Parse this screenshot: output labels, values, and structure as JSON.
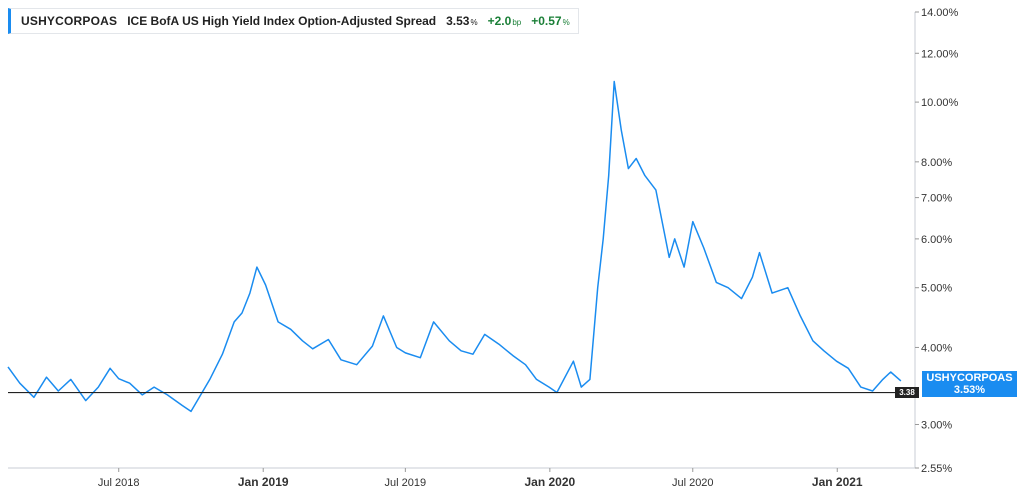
{
  "legend": {
    "symbol": "USHYCORPOAS",
    "name": "ICE BofA US High Yield Index Option-Adjusted Spread",
    "value": "3.53",
    "value_unit": "%",
    "change_bp": "+2.0",
    "change_bp_unit": "bp",
    "change_pct": "+0.57",
    "change_pct_unit": "%"
  },
  "last_label": {
    "symbol": "USHYCORPOAS",
    "value": "3.53%"
  },
  "reference": {
    "label": "3.38",
    "value": 3.38
  },
  "colors": {
    "line": "#1a8cf0",
    "reference": "#222222",
    "positive": "#1a7f37"
  },
  "chart_data": {
    "type": "line",
    "scale": "log",
    "ylim": [
      2.55,
      14.0
    ],
    "y_ticks": [
      14.0,
      12.0,
      10.0,
      8.0,
      7.0,
      6.0,
      5.0,
      4.0,
      3.0,
      2.55
    ],
    "y_tick_labels": [
      "14.00%",
      "12.00%",
      "10.00%",
      "8.00%",
      "7.00%",
      "6.00%",
      "5.00%",
      "4.00%",
      "3.00%",
      "2.55%"
    ],
    "xlim": [
      "2018-02-10",
      "2021-04-10"
    ],
    "x_ticks": [
      {
        "date": "2018-07-01",
        "label": "Jul 2018",
        "major": false
      },
      {
        "date": "2019-01-01",
        "label": "Jan 2019",
        "major": true
      },
      {
        "date": "2019-07-01",
        "label": "Jul 2019",
        "major": false
      },
      {
        "date": "2020-01-01",
        "label": "Jan 2020",
        "major": true
      },
      {
        "date": "2020-07-01",
        "label": "Jul 2020",
        "major": false
      },
      {
        "date": "2021-01-01",
        "label": "Jan 2021",
        "major": true
      }
    ],
    "grid": false,
    "series": [
      {
        "name": "USHYCORPOAS",
        "x": [
          "2018-02-10",
          "2018-02-25",
          "2018-03-15",
          "2018-03-31",
          "2018-04-15",
          "2018-05-01",
          "2018-05-20",
          "2018-06-05",
          "2018-06-20",
          "2018-07-01",
          "2018-07-15",
          "2018-07-31",
          "2018-08-15",
          "2018-09-01",
          "2018-09-20",
          "2018-10-01",
          "2018-10-25",
          "2018-11-10",
          "2018-11-25",
          "2018-12-05",
          "2018-12-15",
          "2018-12-24",
          "2019-01-04",
          "2019-01-20",
          "2019-02-05",
          "2019-02-20",
          "2019-03-05",
          "2019-03-25",
          "2019-04-10",
          "2019-04-30",
          "2019-05-20",
          "2019-06-03",
          "2019-06-20",
          "2019-07-01",
          "2019-07-20",
          "2019-08-06",
          "2019-08-26",
          "2019-09-10",
          "2019-09-25",
          "2019-10-10",
          "2019-10-28",
          "2019-11-15",
          "2019-12-01",
          "2019-12-15",
          "2019-12-31",
          "2020-01-10",
          "2020-01-31",
          "2020-02-10",
          "2020-02-21",
          "2020-03-02",
          "2020-03-09",
          "2020-03-16",
          "2020-03-23",
          "2020-04-01",
          "2020-04-10",
          "2020-04-20",
          "2020-05-01",
          "2020-05-15",
          "2020-06-01",
          "2020-06-08",
          "2020-06-20",
          "2020-07-01",
          "2020-07-15",
          "2020-07-31",
          "2020-08-15",
          "2020-09-01",
          "2020-09-15",
          "2020-09-24",
          "2020-10-10",
          "2020-10-30",
          "2020-11-15",
          "2020-12-01",
          "2020-12-15",
          "2020-12-31",
          "2021-01-15",
          "2021-01-31",
          "2021-02-15",
          "2021-02-28",
          "2021-03-10",
          "2021-03-23"
        ],
        "values": [
          3.72,
          3.5,
          3.32,
          3.58,
          3.4,
          3.55,
          3.28,
          3.45,
          3.7,
          3.56,
          3.5,
          3.35,
          3.45,
          3.35,
          3.22,
          3.15,
          3.55,
          3.9,
          4.4,
          4.55,
          4.9,
          5.4,
          5.05,
          4.4,
          4.28,
          4.1,
          3.98,
          4.12,
          3.82,
          3.75,
          4.02,
          4.5,
          4.0,
          3.92,
          3.85,
          4.4,
          4.1,
          3.95,
          3.9,
          4.2,
          4.05,
          3.88,
          3.75,
          3.55,
          3.45,
          3.38,
          3.8,
          3.45,
          3.55,
          5.0,
          6.0,
          7.6,
          10.8,
          9.0,
          7.8,
          8.1,
          7.6,
          7.2,
          5.6,
          6.0,
          5.4,
          6.4,
          5.8,
          5.1,
          5.0,
          4.8,
          5.2,
          5.7,
          4.9,
          5.0,
          4.5,
          4.1,
          3.95,
          3.8,
          3.7,
          3.45,
          3.4,
          3.55,
          3.65,
          3.53
        ]
      }
    ]
  }
}
